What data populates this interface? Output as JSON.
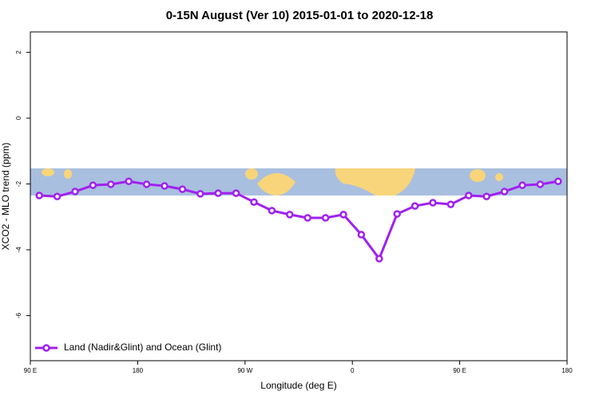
{
  "chart_data": {
    "type": "line",
    "title": "0-15N August (Ver 10)   2015-01-01 to 2020-12-18",
    "x_label": "Longitude (deg E)",
    "y_label": "XCO2 - MLO trend (ppm)",
    "xlim": [
      90,
      540
    ],
    "xticks": [
      {
        "value": 90,
        "label": "90 E"
      },
      180,
      {
        "value": 270,
        "label": "90 W"
      },
      {
        "value": 360,
        "label": "0"
      },
      {
        "value": 450,
        "label": "90 E"
      },
      {
        "value": 540,
        "label": "180"
      }
    ],
    "ylim": [
      -7.37,
      2.62
    ],
    "yticks": [
      -6,
      -4,
      -2,
      0,
      2
    ],
    "legend_position": "bottom-left",
    "series": [
      {
        "name": "Land (Nadir&Glint) and Ocean (Glint)",
        "color": "#a020f0",
        "x": [
          97.5,
          112.5,
          127.5,
          142.5,
          157.5,
          172.5,
          187.5,
          202.5,
          217.5,
          232.5,
          247.5,
          262.5,
          277.5,
          292.5,
          307.5,
          322.5,
          337.5,
          352.5,
          367.5,
          382.5,
          397.5,
          412.5,
          427.5,
          442.5,
          457.5,
          472.5,
          487.5,
          502.5,
          517.5,
          532.5
        ],
        "values": [
          -2.35,
          -2.38,
          -2.23,
          -2.04,
          -2.01,
          -1.92,
          -2.01,
          -2.06,
          -2.16,
          -2.3,
          -2.28,
          -2.28,
          -2.55,
          -2.81,
          -2.93,
          -3.03,
          -3.03,
          -2.93,
          -3.54,
          -4.27,
          -2.91,
          -2.67,
          -2.57,
          -2.62,
          -2.35,
          -2.38,
          -2.23,
          -2.04,
          -2.01,
          -1.92
        ]
      }
    ]
  }
}
